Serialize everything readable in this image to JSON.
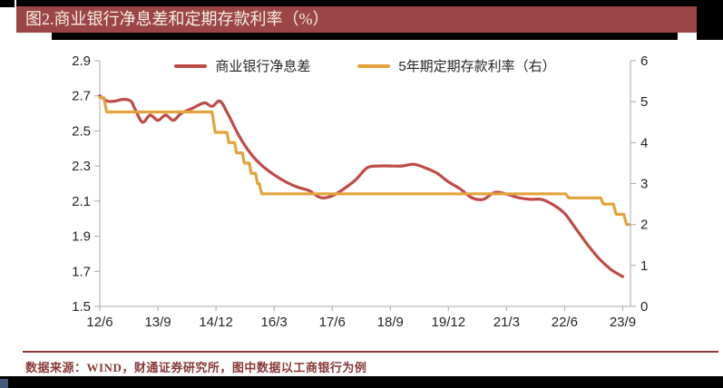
{
  "title_bar": {
    "text": "图2.商业银行净息差和定期存款利率（%）"
  },
  "footer": {
    "source_note": "数据来源：WIND，财通证券研究所，图中数据以工商银行为例"
  },
  "colors": {
    "title_bar_bg": "#9c4547",
    "title_text": "#f4efe0",
    "nim_line": "#be4b48",
    "deposit_line": "#e2a33c",
    "footer_text": "#8a3838",
    "axis": "#a9a9a9",
    "tick_label": "#262626"
  },
  "chart_data": {
    "type": "line",
    "title": "商业银行净息差和定期存款利率（%）",
    "x_unit": "months_since_2012-06",
    "x_domain": [
      0,
      137
    ],
    "x_tick_months": [
      0,
      15,
      30,
      45,
      60,
      75,
      90,
      105,
      120,
      135
    ],
    "x_tick_labels": [
      "12/6",
      "13/9",
      "14/12",
      "16/3",
      "17/6",
      "18/9",
      "19/12",
      "21/3",
      "22/6",
      "23/9"
    ],
    "left_axis": {
      "min": 1.5,
      "max": 2.9,
      "ticks": [
        "2.9",
        "2.7",
        "2.5",
        "2.3",
        "2.1",
        "1.9",
        "1.7",
        "1.5"
      ]
    },
    "right_axis": {
      "min": 0,
      "max": 6,
      "ticks": [
        "6",
        "5",
        "4",
        "3",
        "2",
        "1",
        "0"
      ]
    },
    "grid": false,
    "legend_position": "top-center",
    "series": [
      {
        "name": "商业银行净息差",
        "axis": "left",
        "color_key": "nim_line",
        "smooth": true,
        "points": [
          [
            0,
            2.7
          ],
          [
            2,
            2.67
          ],
          [
            4,
            2.67
          ],
          [
            6,
            2.68
          ],
          [
            8,
            2.67
          ],
          [
            9,
            2.63
          ],
          [
            11,
            2.55
          ],
          [
            13,
            2.59
          ],
          [
            15,
            2.56
          ],
          [
            17,
            2.59
          ],
          [
            19,
            2.56
          ],
          [
            21,
            2.6
          ],
          [
            24,
            2.63
          ],
          [
            27,
            2.66
          ],
          [
            29,
            2.64
          ],
          [
            31,
            2.67
          ],
          [
            33,
            2.6
          ],
          [
            36,
            2.47
          ],
          [
            39,
            2.37
          ],
          [
            42,
            2.3
          ],
          [
            45,
            2.25
          ],
          [
            48,
            2.21
          ],
          [
            51,
            2.18
          ],
          [
            54,
            2.16
          ],
          [
            57,
            2.12
          ],
          [
            60,
            2.13
          ],
          [
            63,
            2.17
          ],
          [
            66,
            2.22
          ],
          [
            69,
            2.29
          ],
          [
            72,
            2.3
          ],
          [
            75,
            2.3
          ],
          [
            78,
            2.3
          ],
          [
            81,
            2.31
          ],
          [
            84,
            2.29
          ],
          [
            87,
            2.26
          ],
          [
            90,
            2.21
          ],
          [
            93,
            2.17
          ],
          [
            96,
            2.12
          ],
          [
            99,
            2.11
          ],
          [
            102,
            2.15
          ],
          [
            105,
            2.14
          ],
          [
            108,
            2.12
          ],
          [
            111,
            2.11
          ],
          [
            114,
            2.11
          ],
          [
            117,
            2.08
          ],
          [
            120,
            2.03
          ],
          [
            123,
            1.94
          ],
          [
            126,
            1.85
          ],
          [
            129,
            1.77
          ],
          [
            132,
            1.71
          ],
          [
            135,
            1.67
          ]
        ]
      },
      {
        "name": "5年期定期存款利率（右）",
        "axis": "right",
        "color_key": "deposit_line",
        "smooth": false,
        "points": [
          [
            0,
            5.1
          ],
          [
            1,
            5.1
          ],
          [
            1.8,
            4.75
          ],
          [
            29,
            4.75
          ],
          [
            29.8,
            4.25
          ],
          [
            32.8,
            4.25
          ],
          [
            33.3,
            4.0
          ],
          [
            34.8,
            4.0
          ],
          [
            35.3,
            3.75
          ],
          [
            36.8,
            3.75
          ],
          [
            37.3,
            3.5
          ],
          [
            38.6,
            3.5
          ],
          [
            39.1,
            3.25
          ],
          [
            40.2,
            3.25
          ],
          [
            40.7,
            3.0
          ],
          [
            41.2,
            3.0
          ],
          [
            41.8,
            2.75
          ],
          [
            120.3,
            2.75
          ],
          [
            121.0,
            2.65
          ],
          [
            129.3,
            2.65
          ],
          [
            130.0,
            2.5
          ],
          [
            132.6,
            2.5
          ],
          [
            133.3,
            2.25
          ],
          [
            135.3,
            2.25
          ],
          [
            136.0,
            2.0
          ],
          [
            136.6,
            2.0
          ]
        ]
      }
    ]
  }
}
